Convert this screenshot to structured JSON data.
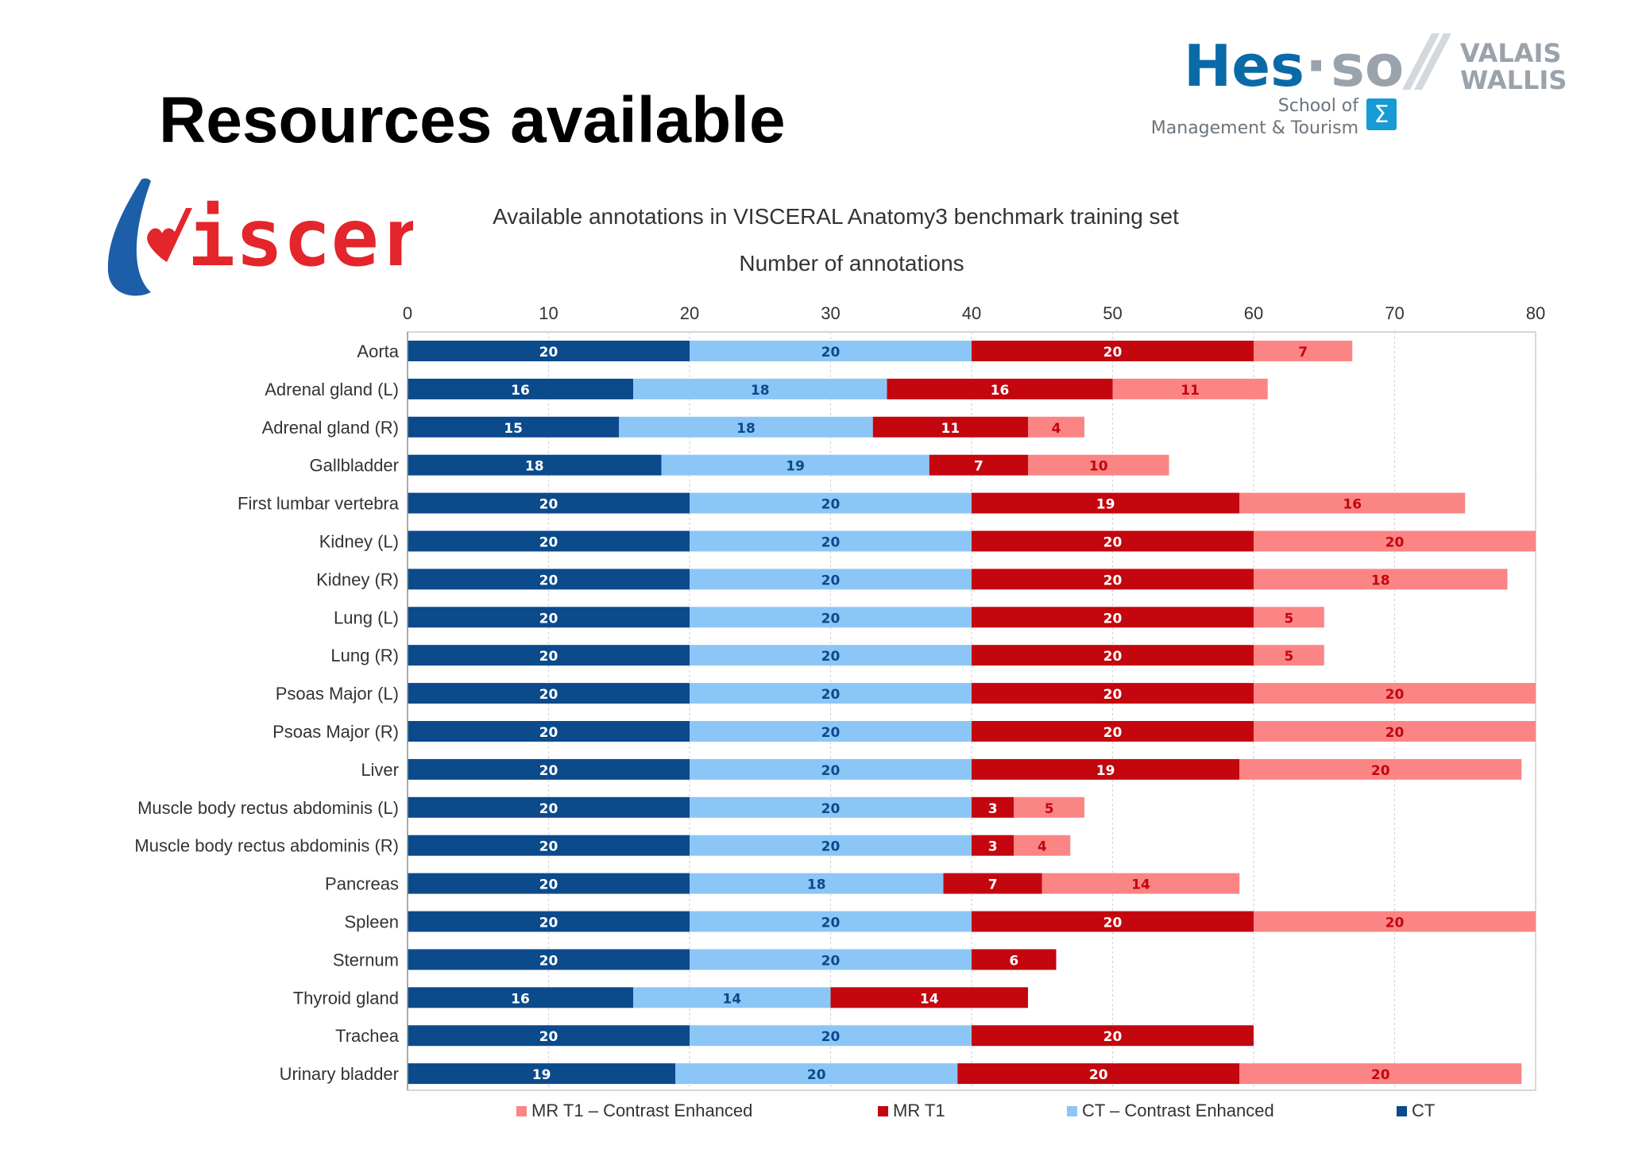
{
  "slide": {
    "title": "Resources available"
  },
  "logos": {
    "school": {
      "brand_a": "Hes",
      "brand_dot": "·",
      "brand_b": "so",
      "region_1": "VALAIS",
      "region_2": "WALLIS",
      "line_1": "School of",
      "line_2": "Management & Tourism",
      "badge": "Σ",
      "colors": {
        "blue": "#0a6aa8",
        "gray": "#9aa3ab"
      }
    },
    "visceral": {
      "text": "isceral",
      "colors": {
        "red": "#e3262b",
        "blue": "#1c5ea8"
      }
    }
  },
  "chart_data": {
    "type": "bar",
    "orientation": "horizontal",
    "stacked": true,
    "title": "Available annotations in VISCERAL Anatomy3 benchmark training set",
    "subtitle": "Number of annotations",
    "xlim": [
      0,
      80
    ],
    "xticks": [
      0,
      10,
      20,
      30,
      40,
      50,
      60,
      70,
      80
    ],
    "grid": true,
    "legend_position": "bottom",
    "categories": [
      "Aorta",
      "Adrenal gland (L)",
      "Adrenal gland (R)",
      "Gallbladder",
      "First lumbar vertebra",
      "Kidney (L)",
      "Kidney (R)",
      "Lung (L)",
      "Lung (R)",
      "Psoas Major (L)",
      "Psoas Major (R)",
      "Liver",
      "Muscle body rectus abdominis (L)",
      "Muscle body rectus abdominis (R)",
      "Pancreas",
      "Spleen",
      "Sternum",
      "Thyroid gland",
      "Trachea",
      "Urinary bladder"
    ],
    "series": [
      {
        "name": "CT",
        "color": "#0b4a8b",
        "label_color": "#ffffff",
        "values": [
          20,
          16,
          15,
          18,
          20,
          20,
          20,
          20,
          20,
          20,
          20,
          20,
          20,
          20,
          20,
          20,
          20,
          16,
          20,
          19
        ]
      },
      {
        "name": "CT – Contrast Enhanced",
        "color": "#8cc6f7",
        "label_color": "#0b4a8b",
        "values": [
          20,
          18,
          18,
          19,
          20,
          20,
          20,
          20,
          20,
          20,
          20,
          20,
          20,
          20,
          18,
          20,
          20,
          14,
          20,
          20
        ]
      },
      {
        "name": "MR T1",
        "color": "#c4060e",
        "label_color": "#ffffff",
        "values": [
          20,
          16,
          11,
          7,
          19,
          20,
          20,
          20,
          20,
          20,
          20,
          19,
          3,
          3,
          7,
          20,
          6,
          14,
          20,
          20
        ]
      },
      {
        "name": "MR T1 – Contrast Enhanced",
        "color": "#fb8585",
        "label_color": "#c4060e",
        "values": [
          7,
          11,
          4,
          10,
          16,
          20,
          18,
          5,
          5,
          20,
          20,
          20,
          5,
          4,
          14,
          20,
          0,
          0,
          0,
          20
        ]
      }
    ],
    "legend_order": [
      "MR T1 – Contrast Enhanced",
      "MR T1",
      "CT – Contrast Enhanced",
      "CT"
    ]
  }
}
